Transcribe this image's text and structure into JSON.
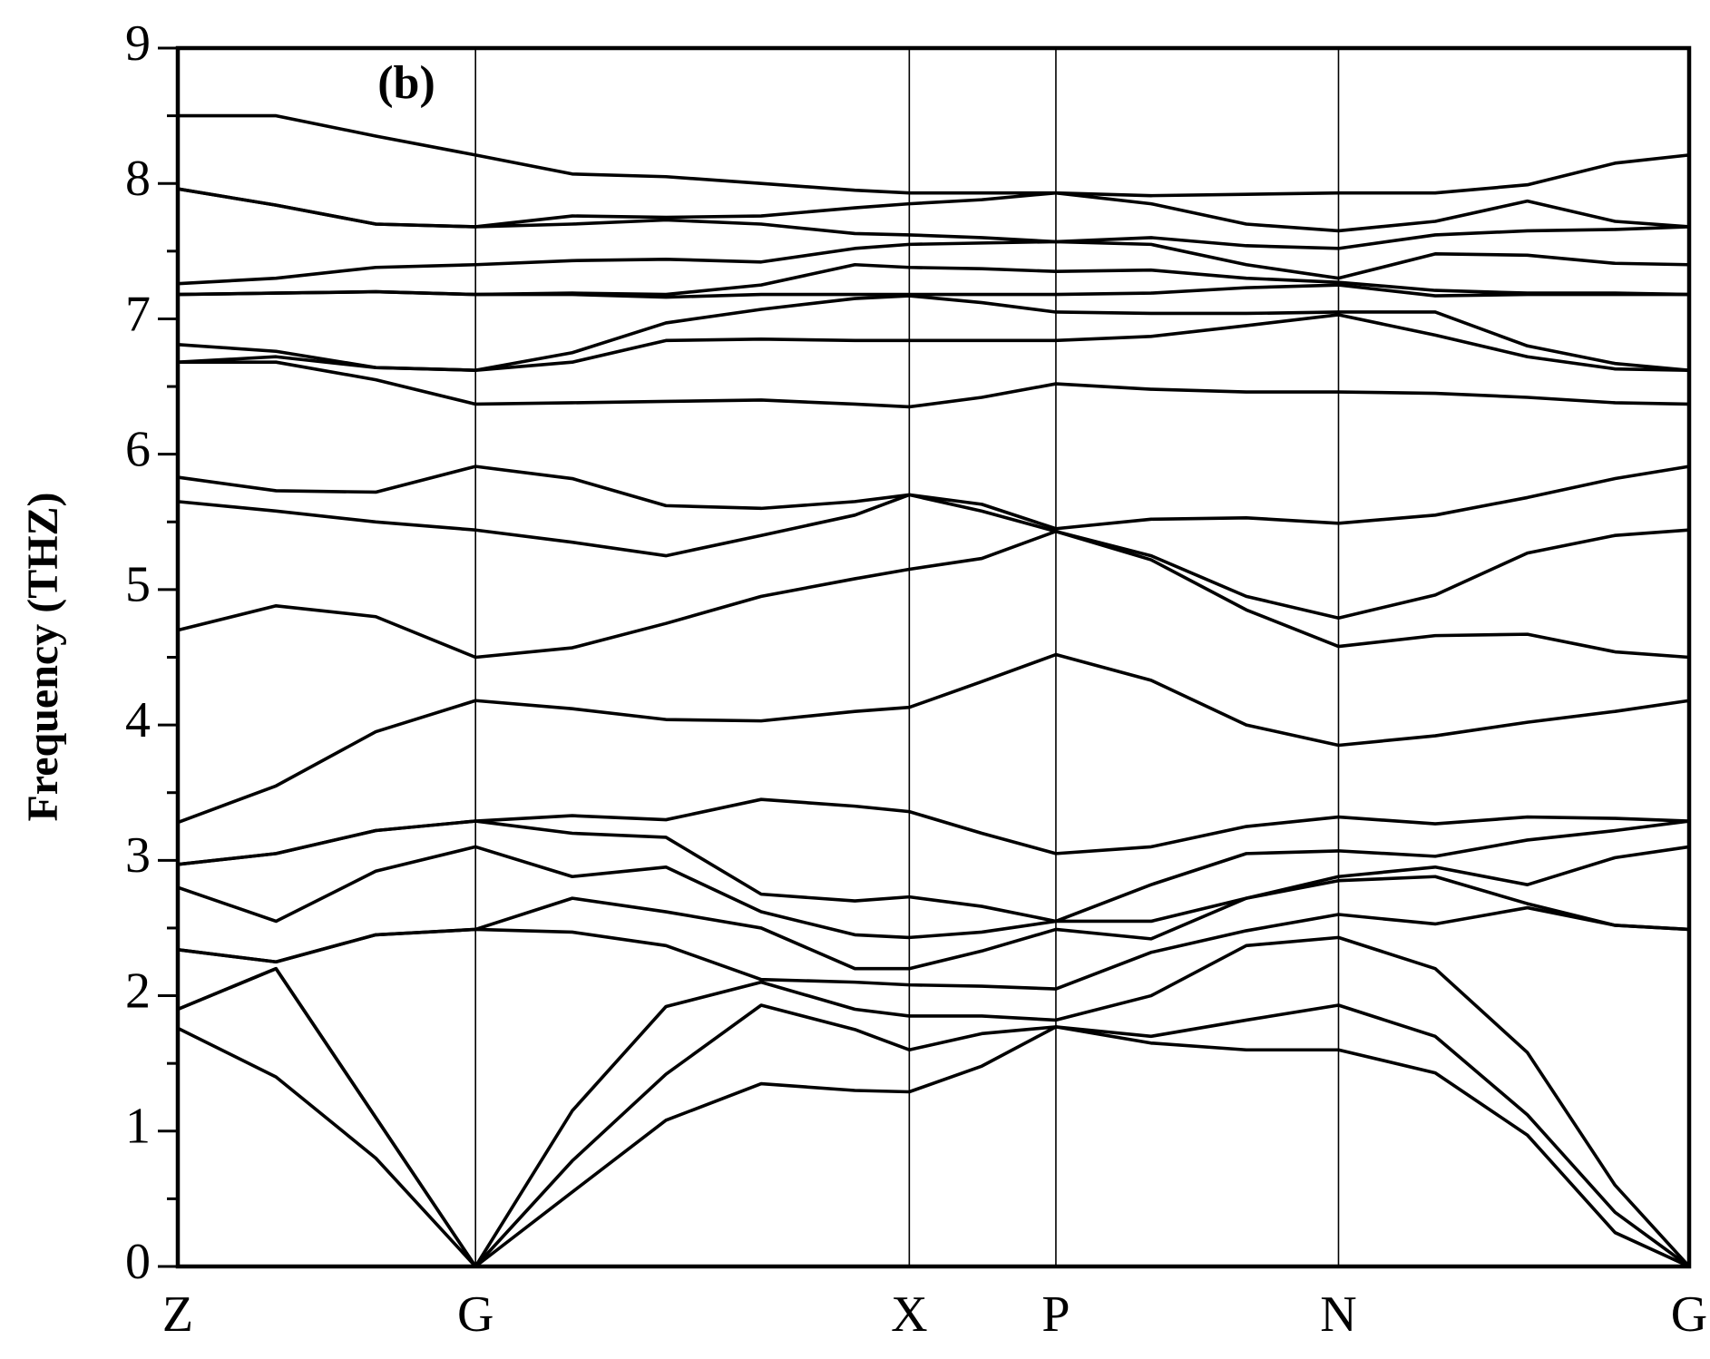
{
  "chart_data": {
    "type": "line",
    "annotation": "(b)",
    "y_label": "Frequency (THZ)",
    "color": "#000000",
    "x": [
      0,
      0.065,
      0.131,
      0.197,
      0.261,
      0.323,
      0.386,
      0.448,
      0.484,
      0.532,
      0.581,
      0.644,
      0.707,
      0.768,
      0.832,
      0.893,
      0.951,
      1
    ],
    "xlim": [
      0,
      1
    ],
    "xticks": [
      {
        "value": 0,
        "label": "Z"
      },
      {
        "value": 0.197,
        "label": "G"
      },
      {
        "value": 0.484,
        "label": "X"
      },
      {
        "value": 0.581,
        "label": "P"
      },
      {
        "value": 0.768,
        "label": "N"
      },
      {
        "value": 1,
        "label": "G"
      }
    ],
    "ylim": [
      0,
      9
    ],
    "yticks": [
      0,
      1,
      2,
      3,
      4,
      5,
      6,
      7,
      8,
      9
    ],
    "yminorticks": [
      0.5,
      1.5,
      2.5,
      3.5,
      4.5,
      5.5,
      6.5,
      7.5,
      8.5
    ],
    "xgrid": true,
    "series": [
      {
        "values": [
          1.76,
          1.4,
          0.8,
          0,
          0.55,
          1.08,
          1.35,
          1.3,
          1.29,
          1.48,
          1.77,
          1.65,
          1.6,
          1.6,
          1.43,
          0.97,
          0.25,
          0
        ]
      },
      {
        "values": [
          1.9,
          2.2,
          1.1,
          0,
          0.78,
          1.42,
          1.93,
          1.75,
          1.6,
          1.72,
          1.77,
          1.7,
          1.82,
          1.93,
          1.7,
          1.12,
          0.4,
          0
        ]
      },
      {
        "values": [
          1.9,
          2.2,
          1.1,
          0,
          1.15,
          1.92,
          2.1,
          1.9,
          1.85,
          1.85,
          1.82,
          2.0,
          2.37,
          2.43,
          2.2,
          1.58,
          0.6,
          0
        ]
      },
      {
        "values": [
          2.34,
          2.25,
          2.45,
          2.49,
          2.47,
          2.37,
          2.12,
          2.1,
          2.08,
          2.07,
          2.05,
          2.32,
          2.48,
          2.6,
          2.53,
          2.65,
          2.52,
          2.49
        ]
      },
      {
        "values": [
          2.34,
          2.25,
          2.45,
          2.49,
          2.72,
          2.62,
          2.5,
          2.2,
          2.2,
          2.33,
          2.49,
          2.42,
          2.72,
          2.85,
          2.88,
          2.68,
          2.52,
          2.49
        ]
      },
      {
        "values": [
          2.8,
          2.55,
          2.92,
          3.1,
          2.88,
          2.95,
          2.62,
          2.45,
          2.43,
          2.47,
          2.55,
          2.55,
          2.72,
          2.88,
          2.95,
          2.82,
          3.02,
          3.1
        ]
      },
      {
        "values": [
          2.97,
          3.05,
          3.22,
          3.29,
          3.2,
          3.17,
          2.75,
          2.7,
          2.73,
          2.66,
          2.55,
          2.82,
          3.05,
          3.07,
          3.03,
          3.15,
          3.22,
          3.29
        ]
      },
      {
        "values": [
          2.97,
          3.05,
          3.22,
          3.29,
          3.33,
          3.3,
          3.45,
          3.4,
          3.36,
          3.2,
          3.05,
          3.1,
          3.25,
          3.32,
          3.27,
          3.32,
          3.31,
          3.29
        ]
      },
      {
        "values": [
          3.28,
          3.55,
          3.95,
          4.18,
          4.12,
          4.04,
          4.03,
          4.1,
          4.13,
          4.32,
          4.52,
          4.33,
          4.0,
          3.85,
          3.92,
          4.02,
          4.1,
          4.18
        ]
      },
      {
        "values": [
          4.7,
          4.88,
          4.8,
          4.5,
          4.57,
          4.75,
          4.95,
          5.08,
          5.15,
          5.23,
          5.43,
          5.22,
          4.85,
          4.58,
          4.66,
          4.67,
          4.54,
          4.5
        ]
      },
      {
        "values": [
          5.65,
          5.58,
          5.5,
          5.44,
          5.35,
          5.25,
          5.4,
          5.55,
          5.7,
          5.58,
          5.43,
          5.25,
          4.95,
          4.79,
          4.96,
          5.27,
          5.4,
          5.44
        ]
      },
      {
        "values": [
          5.83,
          5.73,
          5.72,
          5.91,
          5.82,
          5.62,
          5.6,
          5.65,
          5.7,
          5.63,
          5.45,
          5.52,
          5.53,
          5.49,
          5.55,
          5.68,
          5.82,
          5.91
        ]
      },
      {
        "values": [
          6.68,
          6.68,
          6.55,
          6.37,
          6.38,
          6.39,
          6.4,
          6.37,
          6.35,
          6.42,
          6.52,
          6.48,
          6.46,
          6.46,
          6.45,
          6.42,
          6.38,
          6.37
        ]
      },
      {
        "values": [
          6.68,
          6.72,
          6.64,
          6.62,
          6.68,
          6.84,
          6.85,
          6.84,
          6.84,
          6.84,
          6.84,
          6.87,
          6.95,
          7.03,
          6.88,
          6.72,
          6.63,
          6.62
        ]
      },
      {
        "values": [
          6.81,
          6.76,
          6.64,
          6.62,
          6.75,
          6.97,
          7.07,
          7.15,
          7.17,
          7.12,
          7.05,
          7.04,
          7.04,
          7.05,
          7.05,
          6.8,
          6.67,
          6.62
        ]
      },
      {
        "values": [
          7.18,
          7.19,
          7.2,
          7.18,
          7.18,
          7.16,
          7.18,
          7.18,
          7.18,
          7.18,
          7.18,
          7.19,
          7.23,
          7.25,
          7.17,
          7.18,
          7.18,
          7.18
        ]
      },
      {
        "values": [
          7.18,
          7.19,
          7.2,
          7.18,
          7.19,
          7.18,
          7.25,
          7.4,
          7.38,
          7.37,
          7.35,
          7.36,
          7.3,
          7.27,
          7.21,
          7.19,
          7.19,
          7.18
        ]
      },
      {
        "values": [
          7.26,
          7.3,
          7.38,
          7.4,
          7.43,
          7.44,
          7.42,
          7.52,
          7.55,
          7.56,
          7.57,
          7.55,
          7.4,
          7.3,
          7.48,
          7.47,
          7.41,
          7.4
        ]
      },
      {
        "values": [
          7.96,
          7.84,
          7.7,
          7.68,
          7.7,
          7.73,
          7.7,
          7.63,
          7.62,
          7.6,
          7.57,
          7.6,
          7.54,
          7.52,
          7.62,
          7.65,
          7.66,
          7.68
        ]
      },
      {
        "values": [
          7.96,
          7.84,
          7.7,
          7.68,
          7.76,
          7.75,
          7.76,
          7.82,
          7.85,
          7.88,
          7.93,
          7.85,
          7.7,
          7.65,
          7.72,
          7.87,
          7.72,
          7.68
        ]
      },
      {
        "values": [
          8.5,
          8.5,
          8.35,
          8.21,
          8.07,
          8.05,
          8.0,
          7.95,
          7.93,
          7.93,
          7.93,
          7.91,
          7.92,
          7.93,
          7.93,
          7.99,
          8.15,
          8.21
        ]
      }
    ]
  }
}
